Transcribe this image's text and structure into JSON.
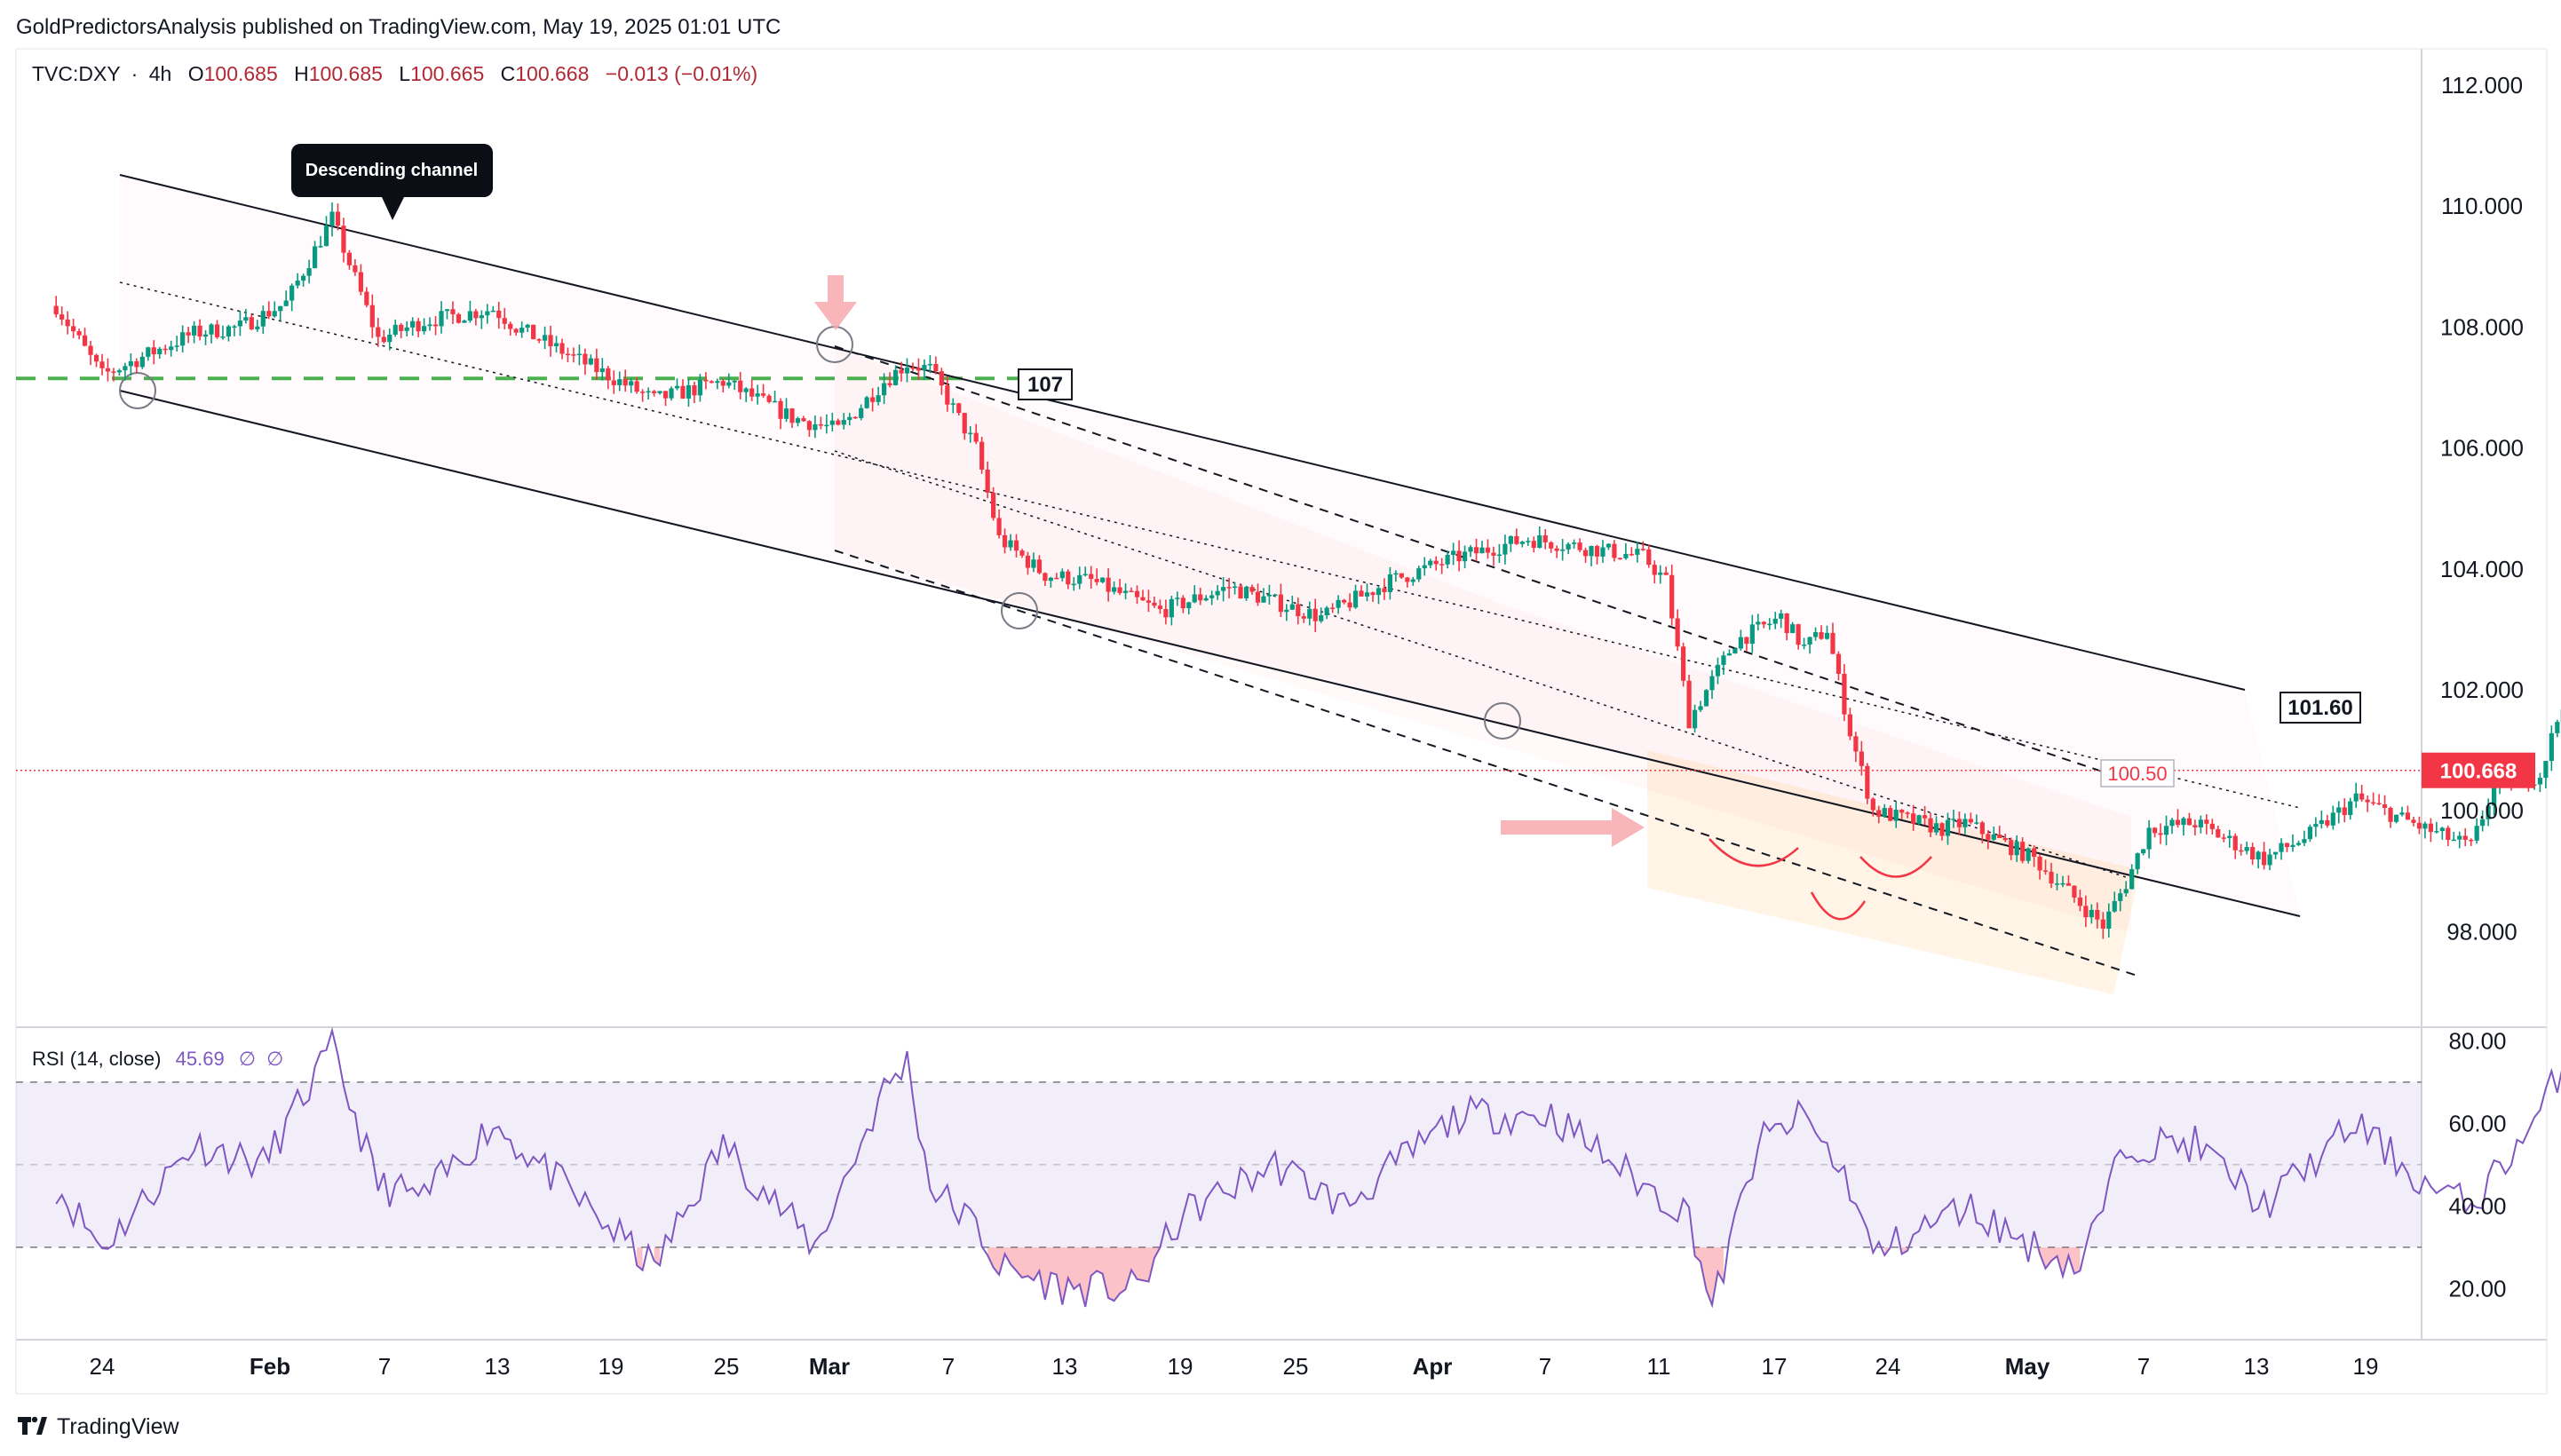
{
  "header": {
    "published": "GoldPredictorsAnalysis published on TradingView.com, May 19, 2025 01:01 UTC"
  },
  "symbol": {
    "name": "TVC:DXY",
    "sep": "·",
    "interval": "4h",
    "o_label": "O",
    "o_value": "100.685",
    "h_label": "H",
    "h_value": "100.685",
    "l_label": "L",
    "l_value": "100.665",
    "c_label": "C",
    "c_value": "100.668",
    "change": "−0.013 (−0.01%)"
  },
  "annotations": {
    "callout": "Descending channel",
    "level_107": "107",
    "level_10160": "101.60",
    "level_10050": "100.50"
  },
  "price_axis": {
    "ticks": [
      "112.000",
      "110.000",
      "108.000",
      "106.000",
      "104.000",
      "102.000",
      "100.000",
      "98.000"
    ],
    "last_price": "100.668"
  },
  "rsi": {
    "label": "RSI (14, close)",
    "value": "45.69",
    "extra1": "∅",
    "extra2": "∅",
    "ticks": [
      "80.00",
      "60.00",
      "40.00",
      "20.00"
    ]
  },
  "time_axis": {
    "ticks": [
      "24",
      "Feb",
      "7",
      "13",
      "19",
      "25",
      "Mar",
      "7",
      "13",
      "19",
      "25",
      "Apr",
      "7",
      "11",
      "17",
      "24",
      "May",
      "7",
      "13",
      "19"
    ]
  },
  "footer": {
    "brand": "TradingView"
  },
  "colors": {
    "up": "#089981",
    "down": "#F23645",
    "rsi_line": "#7E57C2",
    "last_price": "#F23645",
    "support_107": "#4CAF50"
  },
  "chart_data": {
    "type": "candlestick",
    "symbol": "TVC:DXY",
    "interval": "4h",
    "ylim": [
      97,
      112.5
    ],
    "rsi_ylim": [
      10,
      85
    ],
    "anchors": [
      [
        "Jan 22",
        108.35
      ],
      [
        "Jan 24",
        107.2
      ],
      [
        "Jan 28",
        107.9
      ],
      [
        "Jan 30",
        108.0
      ],
      [
        "Feb 1",
        108.4
      ],
      [
        "Feb 3",
        109.8
      ],
      [
        "Feb 4",
        108.8
      ],
      [
        "Feb 5",
        107.8
      ],
      [
        "Feb 7",
        108.1
      ],
      [
        "Feb 10",
        108.3
      ],
      [
        "Feb 11",
        108.0
      ],
      [
        "Feb 13",
        107.6
      ],
      [
        "Feb 17",
        106.8
      ],
      [
        "Feb 20",
        107.1
      ],
      [
        "Feb 23",
        106.5
      ],
      [
        "Feb 25",
        106.3
      ],
      [
        "Feb 27",
        107.1
      ],
      [
        "Feb 28",
        107.4
      ],
      [
        "Mar 1",
        107.3
      ],
      [
        "Mar 3",
        106.0
      ],
      [
        "Mar 4",
        104.5
      ],
      [
        "Mar 6",
        103.9
      ],
      [
        "Mar 8",
        103.8
      ],
      [
        "Mar 11",
        103.3
      ],
      [
        "Mar 14",
        103.7
      ],
      [
        "Mar 18",
        103.2
      ],
      [
        "Mar 21",
        103.8
      ],
      [
        "Mar 24",
        104.2
      ],
      [
        "Mar 27",
        104.5
      ],
      [
        "Apr 1",
        104.2
      ],
      [
        "Apr 2",
        103.8
      ],
      [
        "Apr 3",
        101.5
      ],
      [
        "Apr 5",
        102.8
      ],
      [
        "Apr 7",
        103.2
      ],
      [
        "Apr 8",
        102.7
      ],
      [
        "Apr 9",
        103.0
      ],
      [
        "Apr 10",
        101.3
      ],
      [
        "Apr 11",
        100.0
      ],
      [
        "Apr 14",
        99.7
      ],
      [
        "Apr 15",
        99.8
      ],
      [
        "Apr 18",
        99.2
      ],
      [
        "Apr 21",
        98.1
      ],
      [
        "Apr 22",
        98.8
      ],
      [
        "Apr 23",
        99.7
      ],
      [
        "Apr 25",
        99.8
      ],
      [
        "Apr 28",
        99.2
      ],
      [
        "Apr 30",
        99.6
      ],
      [
        "May 2",
        100.2
      ],
      [
        "May 5",
        99.7
      ],
      [
        "May 7",
        99.4
      ],
      [
        "May 8",
        100.4
      ],
      [
        "May 10",
        100.6
      ],
      [
        "May 11",
        101.8
      ],
      [
        "May 12",
        101.6
      ],
      [
        "May 14",
        100.8
      ],
      [
        "May 16",
        100.9
      ],
      [
        "May 17",
        100.668
      ]
    ],
    "rsi_anchors": [
      [
        "Jan 22",
        45
      ],
      [
        "Jan 24",
        30
      ],
      [
        "Jan 28",
        55
      ],
      [
        "Jan 31",
        50
      ],
      [
        "Feb 3",
        78
      ],
      [
        "Feb 5",
        45
      ],
      [
        "Feb 7",
        42
      ],
      [
        "Feb 10",
        60
      ],
      [
        "Feb 13",
        45
      ],
      [
        "Feb 17",
        25
      ],
      [
        "Feb 20",
        55
      ],
      [
        "Feb 24",
        30
      ],
      [
        "Feb 27",
        68
      ],
      [
        "Feb 28",
        75
      ],
      [
        "Mar 1",
        45
      ],
      [
        "Mar 3",
        35
      ],
      [
        "Mar 4",
        25
      ],
      [
        "Mar 7",
        20
      ],
      [
        "Mar 10",
        20
      ],
      [
        "Mar 12",
        38
      ],
      [
        "Mar 16",
        50
      ],
      [
        "Mar 19",
        40
      ],
      [
        "Mar 24",
        62
      ],
      [
        "Mar 28",
        62
      ],
      [
        "Apr 1",
        45
      ],
      [
        "Apr 3",
        38
      ],
      [
        "Apr 4",
        15
      ],
      [
        "Apr 6",
        55
      ],
      [
        "Apr 8",
        62
      ],
      [
        "Apr 10",
        45
      ],
      [
        "Apr 11",
        28
      ],
      [
        "Apr 15",
        40
      ],
      [
        "Apr 18",
        30
      ],
      [
        "Apr 20",
        25
      ],
      [
        "Apr 22",
        55
      ],
      [
        "Apr 25",
        55
      ],
      [
        "Apr 28",
        40
      ],
      [
        "May 2",
        60
      ],
      [
        "May 5",
        45
      ],
      [
        "May 7",
        40
      ],
      [
        "May 10",
        62
      ],
      [
        "May 11",
        75
      ],
      [
        "May 12",
        65
      ],
      [
        "May 14",
        50
      ],
      [
        "May 16",
        48
      ],
      [
        "May 17",
        45.69
      ]
    ],
    "rsi_levels": [
      70,
      50,
      30
    ],
    "lines": {
      "support_level": 107.15,
      "last_price": 100.668,
      "channel_upper": [
        [
          "Jan 23",
          110.5
        ],
        [
          "May 12",
          101.9
        ]
      ],
      "channel_lower": [
        [
          "Jan 23",
          107.1
        ],
        [
          "May 16",
          98.2
        ]
      ],
      "channel_mid": [
        [
          "Jan 23",
          108.75
        ],
        [
          "May 16",
          100.0
        ]
      ]
    },
    "grid": false
  }
}
